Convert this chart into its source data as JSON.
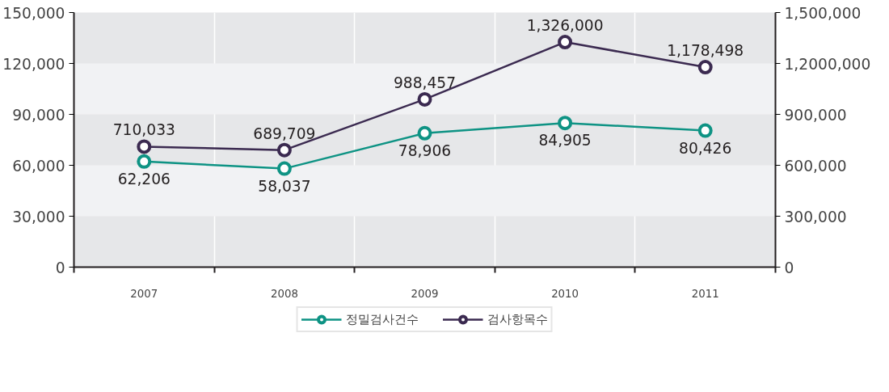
{
  "chart_data": {
    "type": "line",
    "categories": [
      "2007",
      "2008",
      "2009",
      "2010",
      "2011"
    ],
    "series": [
      {
        "name": "정밀검사건수",
        "color": "#0e9384",
        "values": [
          62206,
          58037,
          78906,
          84905,
          80426
        ],
        "value_labels": [
          "62,206",
          "58,037",
          "78,906",
          "84,905",
          "80,426"
        ]
      },
      {
        "name": "검사항목수",
        "color": "#3b2a50",
        "axis": "y2",
        "values": [
          710033,
          689709,
          988457,
          1326000,
          1178498
        ],
        "value_labels": [
          "710,033",
          "689,709",
          "988,457",
          "1,326,000",
          "1,178,498"
        ]
      }
    ],
    "ylim": [
      0,
      150000
    ],
    "yticks": [
      0,
      {
        "value": 30000,
        "label": "30,000"
      },
      {
        "value": 60000,
        "label": "60,000"
      },
      {
        "value": 90000,
        "label": "90,000"
      },
      {
        "value": 120000,
        "label": "120,000"
      },
      {
        "value": 150000,
        "label": "150,000"
      }
    ],
    "y2lim": [
      0,
      1500000
    ],
    "y2ticks": [
      0,
      {
        "value": 300000,
        "label": "300,000"
      },
      {
        "value": 600000,
        "label": "600,000"
      },
      {
        "value": 900000,
        "label": "900,000"
      },
      {
        "value": 1200000,
        "label": "1,2000,000"
      },
      {
        "value": 1500000,
        "label": "1,500,000"
      }
    ],
    "grid": true,
    "legend": "bottom",
    "marker": "circle",
    "line_style": "solid"
  }
}
